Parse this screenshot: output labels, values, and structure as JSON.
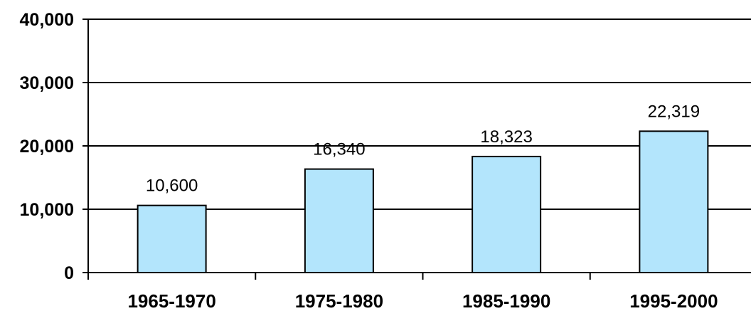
{
  "chart_data": {
    "type": "bar",
    "categories": [
      "1965-1970",
      "1975-1980",
      "1985-1990",
      "1995-2000"
    ],
    "values": [
      10600,
      16340,
      18323,
      22319
    ],
    "data_labels": [
      "10,600",
      "16,340",
      "18,323",
      "22,319"
    ],
    "yticks": [
      0,
      10000,
      20000,
      30000,
      40000
    ],
    "ytick_labels": [
      "0",
      "10,000",
      "20,000",
      "30,000",
      "40,000"
    ],
    "ylim": [
      0,
      40000
    ],
    "grid": true,
    "bar_color": "#b3e5fc"
  }
}
